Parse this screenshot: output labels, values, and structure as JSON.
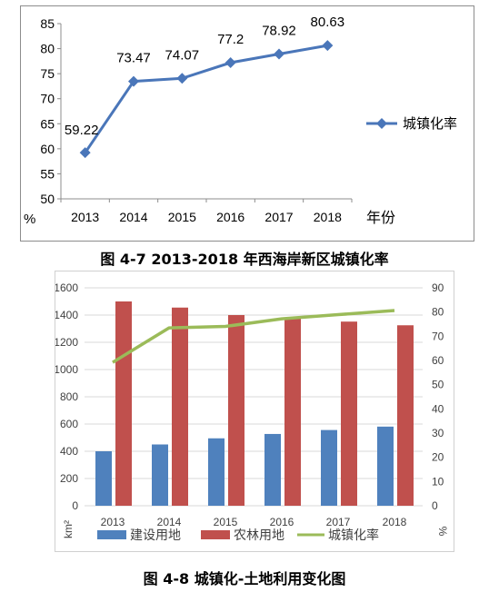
{
  "chart_data": [
    {
      "type": "line",
      "x": [
        "2013",
        "2014",
        "2015",
        "2016",
        "2017",
        "2018"
      ],
      "series": [
        {
          "name": "城镇化率",
          "values": [
            59.22,
            73.47,
            74.07,
            77.2,
            78.92,
            80.63
          ],
          "color": "#4a76b9"
        }
      ],
      "data_labels": [
        "59.22",
        "73.47",
        "74.07",
        "77.2",
        "78.92",
        "80.63"
      ],
      "xlabel": "年份",
      "ylabel": "%",
      "ylim": [
        50,
        85
      ],
      "yticks": [
        "50",
        "55",
        "60",
        "65",
        "70",
        "75",
        "80",
        "85"
      ],
      "grid": false,
      "legend": "right",
      "marker": "diamond"
    },
    {
      "type": "bar",
      "categories": [
        "2013",
        "2014",
        "2015",
        "2016",
        "2017",
        "2018"
      ],
      "series": [
        {
          "name": "建设用地",
          "values": [
            400,
            450,
            495,
            527,
            556,
            581
          ],
          "color": "#4f81bd",
          "axis": "left"
        },
        {
          "name": "农林用地",
          "values": [
            1500,
            1455,
            1400,
            1380,
            1352,
            1325
          ],
          "color": "#c0504d",
          "axis": "left"
        },
        {
          "name": "城镇化率",
          "type": "line",
          "values": [
            59.22,
            73.47,
            74.07,
            77.2,
            78.92,
            80.63
          ],
          "color": "#9bbb59",
          "axis": "right"
        }
      ],
      "ylabel": "km²",
      "ylabel_right": "%",
      "ylim": [
        0,
        1600
      ],
      "ylim_right": [
        0,
        90
      ],
      "yticks": [
        "0",
        "200",
        "400",
        "600",
        "800",
        "1000",
        "1200",
        "1400",
        "1600"
      ],
      "yticks_right": [
        "0",
        "10",
        "20",
        "30",
        "40",
        "50",
        "60",
        "70",
        "80",
        "90"
      ],
      "grid": true,
      "legend": "bottom"
    }
  ],
  "captions": {
    "fig1": "图 4-7  2013-2018 年西海岸新区城镇化率",
    "fig2": "图 4-8  城镇化-土地利用变化图"
  }
}
